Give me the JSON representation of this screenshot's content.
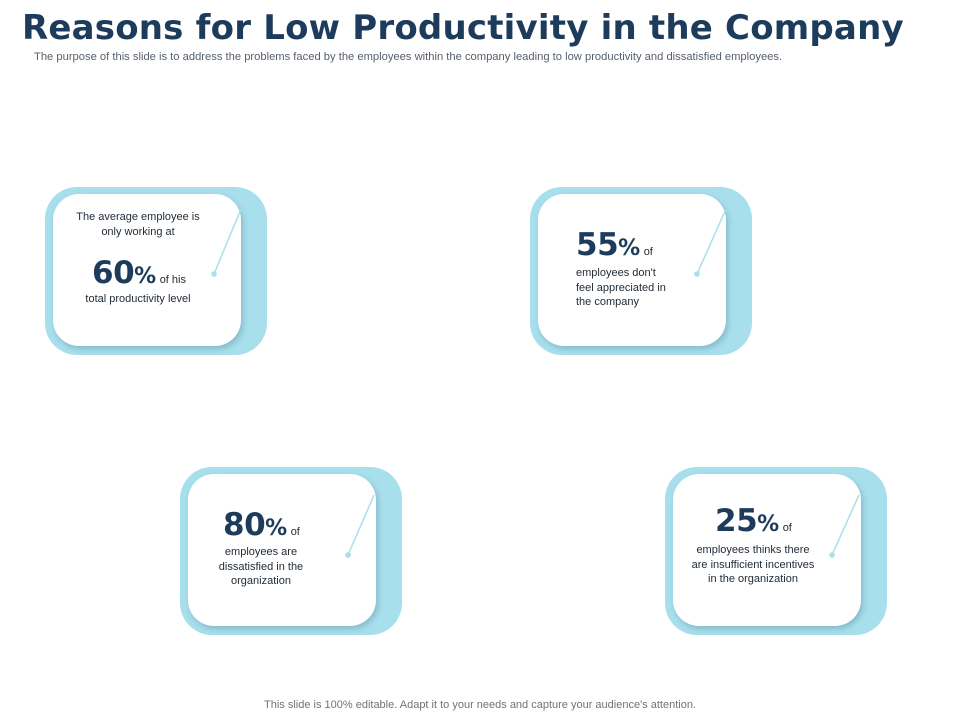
{
  "slide": {
    "title": "Reasons for Low Productivity in the Company",
    "subtitle": "The purpose of this slide is to address the problems faced by the employees within the company leading to low productivity and dissatisfied employees.",
    "footer": "This slide is 100% editable. Adapt it to your needs and capture your audience's attention."
  },
  "colors": {
    "title": "#1d3c5c",
    "card_back": "#a8dfec",
    "card_front": "#ffffff",
    "accent_line": "#a8dfec"
  },
  "cards": [
    {
      "intro": "The average employee is only working at",
      "value": "60",
      "unit": "%",
      "of_text": "of his",
      "desc": "total productivity level"
    },
    {
      "value": "55",
      "unit": "%",
      "of_text": "of",
      "desc": "employees don't feel appreciated in the company"
    },
    {
      "value": "80",
      "unit": "%",
      "of_text": "of",
      "desc": "employees are dissatisfied in the organization"
    },
    {
      "value": "25",
      "unit": "%",
      "of_text": "of",
      "desc": "employees thinks there are insufficient incentives in the organization"
    }
  ]
}
